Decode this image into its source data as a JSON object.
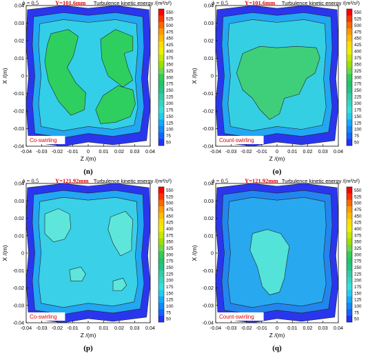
{
  "colorbar": {
    "labels": [
      "550",
      "525",
      "500",
      "475",
      "450",
      "425",
      "400",
      "375",
      "350",
      "325",
      "300",
      "275",
      "250",
      "225",
      "200",
      "175",
      "150",
      "125",
      "100",
      "75",
      "50"
    ],
    "colors": [
      "#ff0000",
      "#ff3300",
      "#ff6600",
      "#ff9900",
      "#ffbb00",
      "#ffdd00",
      "#eeee00",
      "#c8e600",
      "#9be000",
      "#6cd84a",
      "#33cc55",
      "#22c46a",
      "#22c488",
      "#33cca6",
      "#33d6c2",
      "#33e0dc",
      "#22ccee",
      "#11aaff",
      "#1188ff",
      "#1166ff",
      "#2233ff"
    ]
  },
  "chart_data": [
    {
      "type": "heatmap",
      "phi_label": "ϕ = 0.5",
      "y_title": "Y=101.6mm",
      "legend_title": "Turbulence kinetic energy /(m²/s²)",
      "xlabel": "Z /(m)",
      "ylabel": "X /(m)",
      "xlim": [
        -0.04,
        0.04
      ],
      "ylim": [
        -0.04,
        0.04
      ],
      "ticks": [
        "-0.04",
        "-0.03",
        "-0.02",
        "-0.01",
        "0",
        "0.01",
        "0.02",
        "0.03",
        "0.04"
      ],
      "tag": "Co-swirling",
      "panel": "(n)"
    },
    {
      "type": "heatmap",
      "phi_label": "ϕ = 0.5",
      "y_title": "Y=101.6mm",
      "legend_title": "Turbulence kinetic energy /(m²/s²)",
      "xlabel": "Z /(m)",
      "ylabel": "X /(m)",
      "xlim": [
        -0.04,
        0.04
      ],
      "ylim": [
        -0.04,
        0.04
      ],
      "ticks": [
        "-0.04",
        "-0.03",
        "-0.02",
        "-0.01",
        "0",
        "0.01",
        "0.02",
        "0.03",
        "0.04"
      ],
      "tag": "Count-swirling",
      "panel": "(o)"
    },
    {
      "type": "heatmap",
      "phi_label": "ϕ = 0.5",
      "y_title": "Y=121.92mm",
      "legend_title": "Turbulence kinetic energy /(m²/s²)",
      "xlabel": "Z /(m)",
      "ylabel": "X /(m)",
      "xlim": [
        -0.04,
        0.04
      ],
      "ylim": [
        -0.04,
        0.04
      ],
      "ticks": [
        "-0.04",
        "-0.03",
        "-0.02",
        "-0.01",
        "0",
        "0.01",
        "0.02",
        "0.03",
        "0.04"
      ],
      "tag": "Co-swirling",
      "panel": "(p)"
    },
    {
      "type": "heatmap",
      "phi_label": "ϕ = 0.5",
      "y_title": "Y=121.92mm",
      "legend_title": "Turbulence kinetic energy /(m²/s²)",
      "xlabel": "Z /(m)",
      "ylabel": "X /(m)",
      "xlim": [
        -0.04,
        0.04
      ],
      "ylim": [
        -0.04,
        0.04
      ],
      "ticks": [
        "-0.04",
        "-0.03",
        "-0.02",
        "-0.01",
        "0",
        "0.01",
        "0.02",
        "0.03",
        "0.04"
      ],
      "tag": "Count-swirling",
      "panel": "(q)"
    }
  ]
}
